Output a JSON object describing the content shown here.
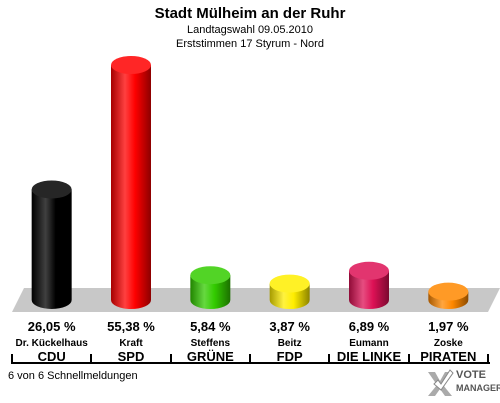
{
  "title": "Stadt Mülheim an der Ruhr",
  "subtitle": "Landtagswahl 09.05.2010",
  "subtitle2": "Erststimmen 17 Styrum - Nord",
  "footer": "6 von 6 Schnellmeldungen",
  "logo": {
    "line1": "VOTE",
    "line2": "MANAGER",
    "icon": "checkmark-x-icon"
  },
  "chart_data": {
    "type": "bar",
    "categories": [
      "CDU",
      "SPD",
      "GRÜNE",
      "FDP",
      "DIE LINKE",
      "PIRATEN"
    ],
    "candidates": [
      "Dr. Kückelhaus",
      "Kraft",
      "Steffens",
      "Beitz",
      "Eumann",
      "Zoske"
    ],
    "values": [
      26.05,
      55.38,
      5.84,
      3.87,
      6.89,
      1.97
    ],
    "value_labels": [
      "26,05 %",
      "55,38 %",
      "5,84 %",
      "3,87 %",
      "6,89 %",
      "1,97 %"
    ],
    "colors": [
      "#000000",
      "#ff0000",
      "#33cc00",
      "#ffee00",
      "#dd1155",
      "#ff8800"
    ],
    "ylim": [
      0,
      60
    ],
    "grid": false,
    "legend": "none"
  }
}
